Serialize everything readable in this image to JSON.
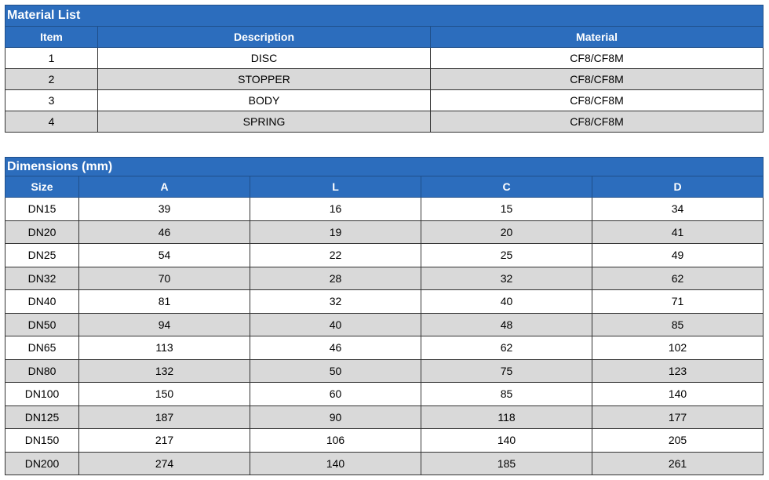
{
  "material_list": {
    "title": "Material List",
    "headers": [
      "Item",
      "Description",
      "Material"
    ],
    "rows": [
      [
        1,
        "DISC",
        "CF8/CF8M"
      ],
      [
        2,
        "STOPPER",
        "CF8/CF8M"
      ],
      [
        3,
        "BODY",
        "CF8/CF8M"
      ],
      [
        4,
        "SPRING",
        "CF8/CF8M"
      ]
    ]
  },
  "dimensions": {
    "title": "Dimensions (mm)",
    "headers": [
      "Size",
      "A",
      "L",
      "C",
      "D"
    ],
    "rows": [
      [
        "DN15",
        39,
        16,
        15,
        34
      ],
      [
        "DN20",
        46,
        19,
        20,
        41
      ],
      [
        "DN25",
        54,
        22,
        25,
        49
      ],
      [
        "DN32",
        70,
        28,
        32,
        62
      ],
      [
        "DN40",
        81,
        32,
        40,
        71
      ],
      [
        "DN50",
        94,
        40,
        48,
        85
      ],
      [
        "DN65",
        113,
        46,
        62,
        102
      ],
      [
        "DN80",
        132,
        50,
        75,
        123
      ],
      [
        "DN100",
        150,
        60,
        85,
        140
      ],
      [
        "DN125",
        187,
        90,
        118,
        177
      ],
      [
        "DN150",
        217,
        106,
        140,
        205
      ],
      [
        "DN200",
        274,
        140,
        185,
        261
      ]
    ]
  }
}
